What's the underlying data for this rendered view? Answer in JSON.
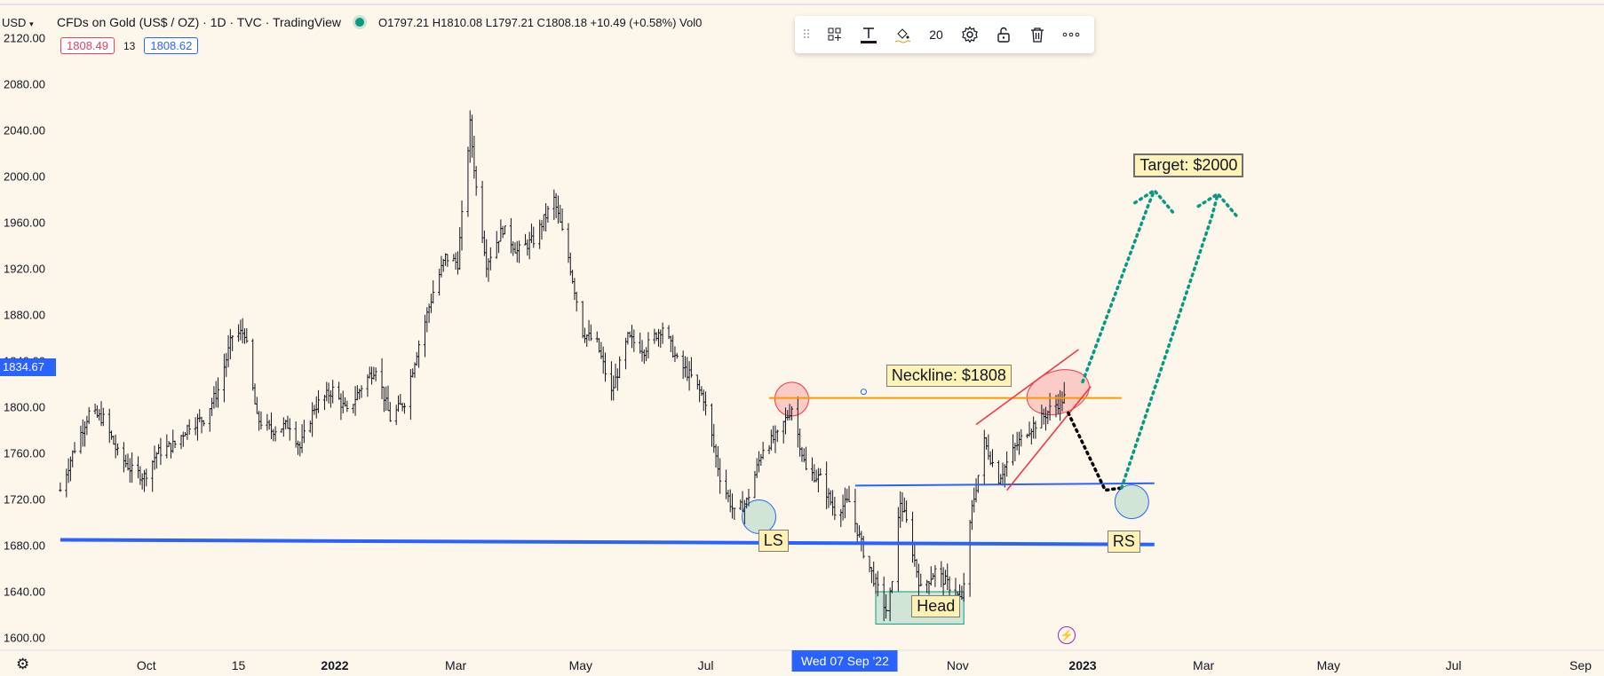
{
  "header": {
    "currency": "USD",
    "title": "CFDs on Gold (US$ / OZ) · 1D · TVC · TradingView",
    "ohlc_text": "O1797.21  H1810.08  L1797.21  C1808.18  +10.49 (+0.58%)  Vol0",
    "sell_price": "1808.49",
    "spread": "13",
    "buy_price": "1808.62"
  },
  "toolbar": {
    "line_width": "20",
    "icons": [
      "drag-handle-icon",
      "template-icon",
      "line-style-icon",
      "color-fill-icon",
      "settings-gear-icon",
      "unlock-icon",
      "trash-icon",
      "more-icon"
    ]
  },
  "crosshair": {
    "price_label": "1834.67",
    "time_label": "Wed 07 Sep '22"
  },
  "colors": {
    "background": "#fdf6ea",
    "candles": "#131722",
    "neckline": "#ff9800",
    "support": "#2962ff",
    "wedge": "#f23645",
    "target_path": "#089981",
    "drop_path": "#000000",
    "crosshair": "#2962ff"
  },
  "annotations": {
    "neckline": "Neckline: $1808",
    "target": "Target: $2000",
    "left_shoulder": "LS",
    "head": "Head",
    "right_shoulder": "RS"
  },
  "chart_data": {
    "type": "candlestick",
    "title": "CFDs on Gold (US$ / OZ) · 1D · TVC · TradingView",
    "xlabel": "",
    "ylabel": "",
    "grid": false,
    "ylim": [
      1595,
      2125
    ],
    "y_ticks": [
      "2120.00",
      "2080.00",
      "2040.00",
      "2000.00",
      "1960.00",
      "1920.00",
      "1880.00",
      "1840.00",
      "1800.00",
      "1760.00",
      "1720.00",
      "1680.00",
      "1640.00",
      "1600.00"
    ],
    "x_ticks": [
      {
        "label": "Oct",
        "date": "2021-10-01",
        "bold": false
      },
      {
        "label": "15",
        "date": "2021-11-15",
        "bold": false
      },
      {
        "label": "2022",
        "date": "2022-01-01",
        "bold": true
      },
      {
        "label": "Mar",
        "date": "2022-03-01",
        "bold": false
      },
      {
        "label": "May",
        "date": "2022-05-01",
        "bold": false
      },
      {
        "label": "Jul",
        "date": "2022-07-01",
        "bold": false
      },
      {
        "label": "Nov",
        "date": "2022-11-01",
        "bold": false
      },
      {
        "label": "2023",
        "date": "2023-01-01",
        "bold": true
      },
      {
        "label": "Mar",
        "date": "2023-03-01",
        "bold": false
      },
      {
        "label": "May",
        "date": "2023-05-01",
        "bold": false
      },
      {
        "label": "Jul",
        "date": "2023-07-01",
        "bold": false
      },
      {
        "label": "Sep",
        "date": "2023-09-01",
        "bold": false
      }
    ],
    "close_path": [
      [
        "2021-08-20",
        1728
      ],
      [
        "2021-08-26",
        1760
      ],
      [
        "2021-09-03",
        1795
      ],
      [
        "2021-09-10",
        1790
      ],
      [
        "2021-09-17",
        1760
      ],
      [
        "2021-09-24",
        1745
      ],
      [
        "2021-09-30",
        1740
      ],
      [
        "2021-10-06",
        1760
      ],
      [
        "2021-10-15",
        1768
      ],
      [
        "2021-10-22",
        1785
      ],
      [
        "2021-10-29",
        1790
      ],
      [
        "2021-11-05",
        1815
      ],
      [
        "2021-11-12",
        1862
      ],
      [
        "2021-11-18",
        1865
      ],
      [
        "2021-11-24",
        1790
      ],
      [
        "2021-12-01",
        1780
      ],
      [
        "2021-12-10",
        1785
      ],
      [
        "2021-12-15",
        1765
      ],
      [
        "2021-12-22",
        1800
      ],
      [
        "2021-12-31",
        1815
      ],
      [
        "2022-01-07",
        1795
      ],
      [
        "2022-01-14",
        1818
      ],
      [
        "2022-01-21",
        1835
      ],
      [
        "2022-01-28",
        1790
      ],
      [
        "2022-02-04",
        1805
      ],
      [
        "2022-02-11",
        1855
      ],
      [
        "2022-02-18",
        1900
      ],
      [
        "2022-02-24",
        1930
      ],
      [
        "2022-03-02",
        1925
      ],
      [
        "2022-03-08",
        2045
      ],
      [
        "2022-03-11",
        1990
      ],
      [
        "2022-03-16",
        1925
      ],
      [
        "2022-03-24",
        1955
      ],
      [
        "2022-03-31",
        1935
      ],
      [
        "2022-04-08",
        1945
      ],
      [
        "2022-04-18",
        1980
      ],
      [
        "2022-04-25",
        1930
      ],
      [
        "2022-05-02",
        1865
      ],
      [
        "2022-05-09",
        1855
      ],
      [
        "2022-05-16",
        1812
      ],
      [
        "2022-05-24",
        1860
      ],
      [
        "2022-06-01",
        1850
      ],
      [
        "2022-06-10",
        1870
      ],
      [
        "2022-06-17",
        1840
      ],
      [
        "2022-06-24",
        1826
      ],
      [
        "2022-06-30",
        1808
      ],
      [
        "2022-07-08",
        1740
      ],
      [
        "2022-07-15",
        1708
      ],
      [
        "2022-07-21",
        1718
      ],
      [
        "2022-07-29",
        1765
      ],
      [
        "2022-08-05",
        1775
      ],
      [
        "2022-08-12",
        1800
      ],
      [
        "2022-08-19",
        1745
      ],
      [
        "2022-08-26",
        1738
      ],
      [
        "2022-09-02",
        1710
      ],
      [
        "2022-09-09",
        1718
      ],
      [
        "2022-09-16",
        1675
      ],
      [
        "2022-09-23",
        1642
      ],
      [
        "2022-09-28",
        1620
      ],
      [
        "2022-10-04",
        1718
      ],
      [
        "2022-10-07",
        1700
      ],
      [
        "2022-10-14",
        1642
      ],
      [
        "2022-10-21",
        1658
      ],
      [
        "2022-10-28",
        1645
      ],
      [
        "2022-11-03",
        1632
      ],
      [
        "2022-11-08",
        1712
      ],
      [
        "2022-11-14",
        1770
      ],
      [
        "2022-11-21",
        1738
      ],
      [
        "2022-11-29",
        1765
      ],
      [
        "2022-12-05",
        1780
      ],
      [
        "2022-12-12",
        1790
      ],
      [
        "2022-12-16",
        1798
      ],
      [
        "2022-12-23",
        1808
      ]
    ],
    "lines": [
      {
        "name": "neckline",
        "from": [
          "2022-08-01",
          1808
        ],
        "to": [
          "2023-01-20",
          1808
        ]
      },
      {
        "name": "upper-support",
        "from": [
          "2022-09-12",
          1732
        ],
        "to": [
          "2023-02-05",
          1734
        ]
      },
      {
        "name": "lower-support",
        "from": [
          "2021-08-20",
          1685
        ],
        "to": [
          "2023-02-05",
          1681
        ]
      },
      {
        "name": "wedge-upper",
        "from": [
          "2022-11-10",
          1785
        ],
        "to": [
          "2022-12-30",
          1850
        ]
      },
      {
        "name": "wedge-lower",
        "from": [
          "2022-11-25",
          1728
        ],
        "to": [
          "2023-01-05",
          1818
        ]
      }
    ],
    "projections": [
      {
        "name": "drop-to-right-shoulder",
        "points": [
          [
            "2022-12-25",
            1795
          ],
          [
            "2023-01-12",
            1728
          ],
          [
            "2023-01-20",
            1730
          ]
        ]
      },
      {
        "name": "target-path-1",
        "points": [
          [
            "2023-01-01",
            1822
          ],
          [
            "2023-02-02",
            1975
          ],
          [
            "2023-02-05",
            1988
          ]
        ]
      },
      {
        "name": "target-path-2",
        "points": [
          [
            "2023-01-20",
            1730
          ],
          [
            "2023-03-05",
            1965
          ],
          [
            "2023-03-08",
            1985
          ]
        ]
      }
    ],
    "highlights": [
      {
        "name": "left-shoulder-circle",
        "date": "2022-07-27",
        "price": 1705
      },
      {
        "name": "neck-left-circle",
        "date": "2022-08-12",
        "price": 1807
      },
      {
        "name": "neck-right-ellipse",
        "date": "2022-12-20",
        "price": 1813
      },
      {
        "name": "right-shoulder-circle",
        "date": "2023-01-25",
        "price": 1718
      },
      {
        "name": "head-box",
        "from": [
          "2022-09-22",
          1640
        ],
        "to": [
          "2022-11-04",
          1612
        ]
      }
    ]
  }
}
